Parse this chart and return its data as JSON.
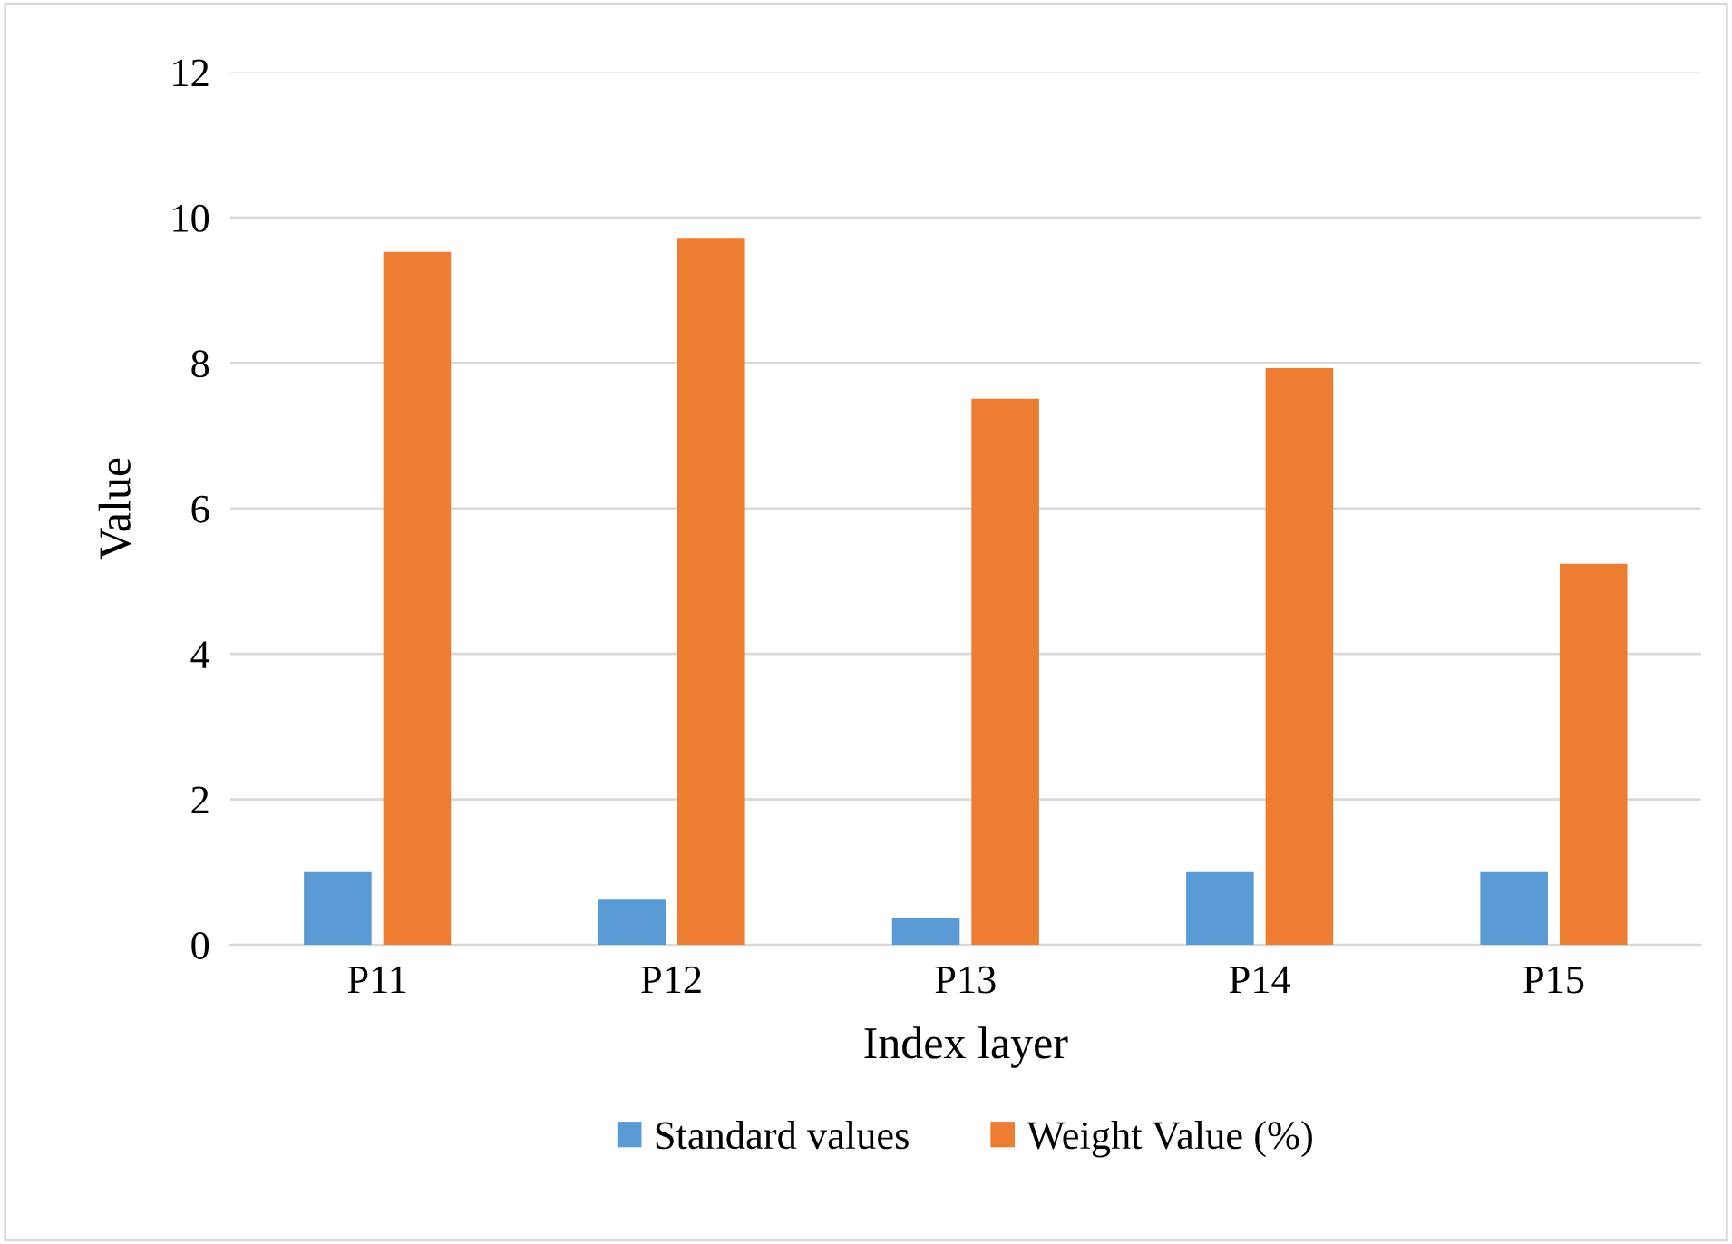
{
  "chart_data": {
    "type": "bar",
    "xlabel": "Index layer",
    "ylabel": "Value",
    "categories": [
      "P11",
      "P12",
      "P13",
      "P14",
      "P15"
    ],
    "series": [
      {
        "name": "Standard values",
        "color": "#5b9bd5",
        "values": [
          1.0,
          0.62,
          0.37,
          1.0,
          1.0
        ]
      },
      {
        "name": "Weight Value (%)",
        "color": "#ed7d31",
        "values": [
          9.53,
          9.71,
          7.51,
          7.93,
          5.24
        ]
      }
    ],
    "ylim": [
      0,
      12
    ],
    "yticks": [
      0,
      2,
      4,
      6,
      8,
      10,
      12
    ],
    "grid": "y",
    "legend": "bottom"
  }
}
